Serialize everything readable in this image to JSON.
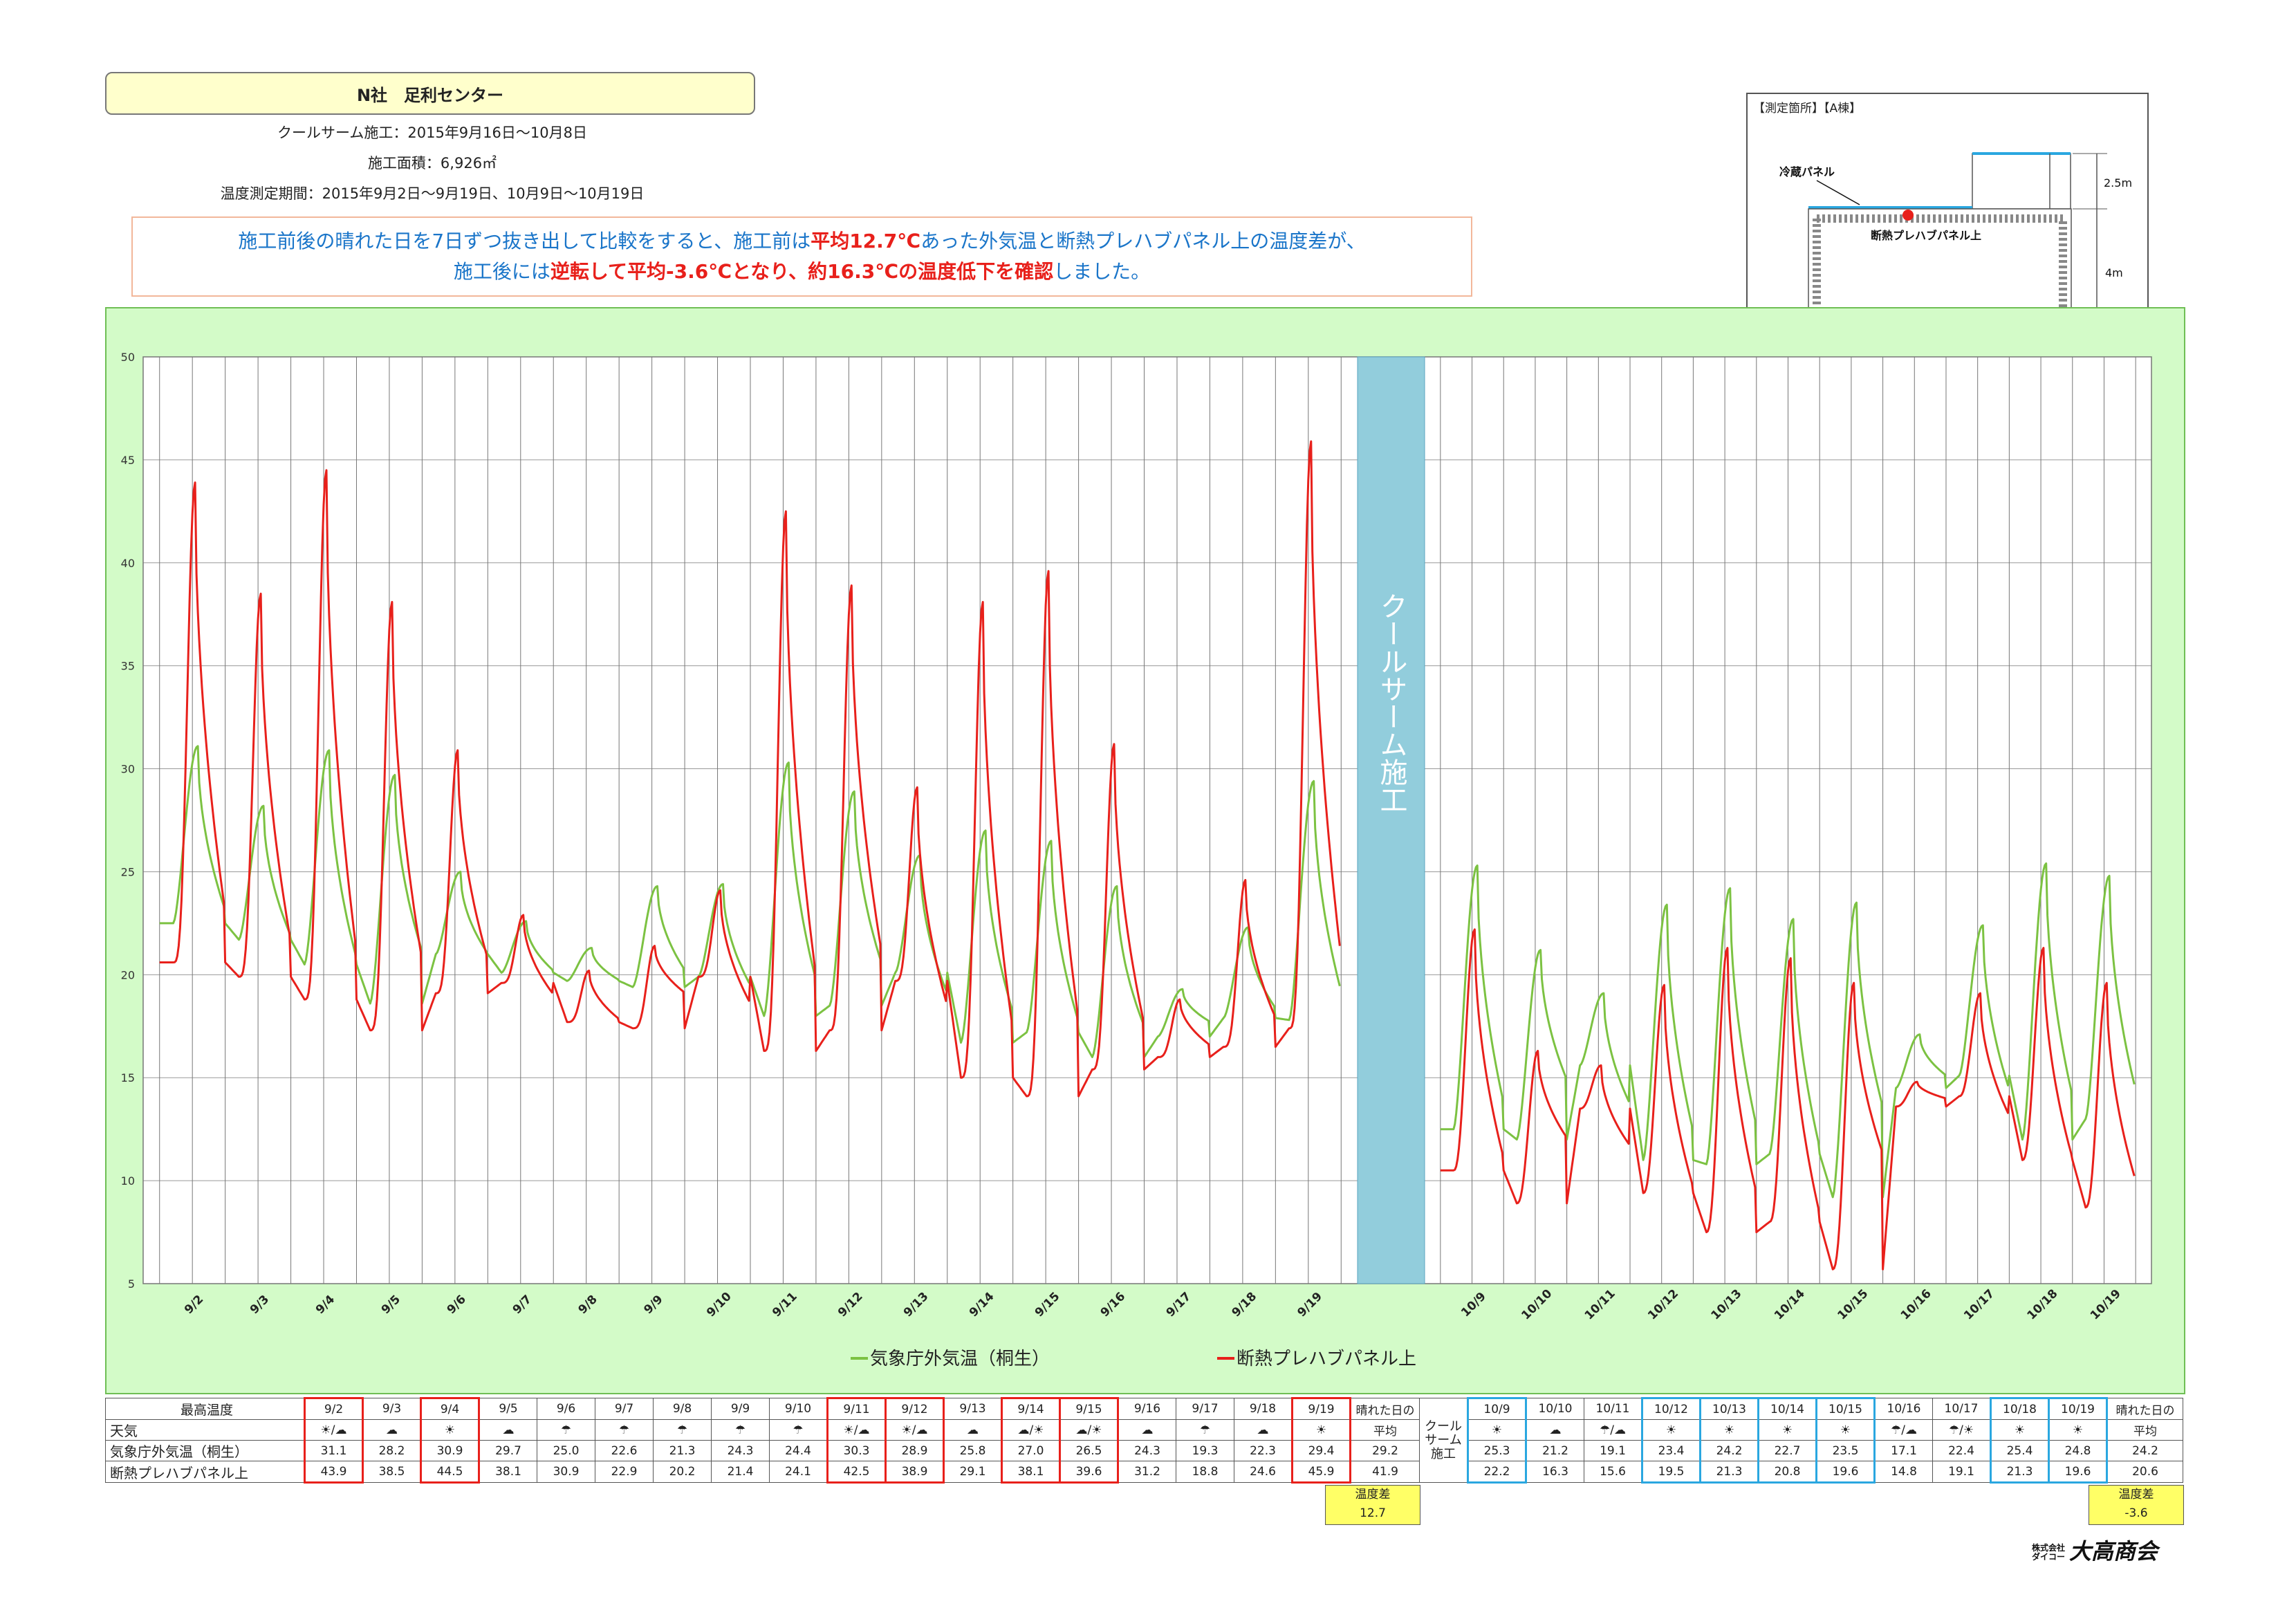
{
  "header": {
    "title": "N社　足利センター",
    "line1": "クールサーム施工：2015年9月16日～10月8日",
    "line2": "施工面積：6,926㎡",
    "line3": "温度測定期間：2015年9月2日～9月19日、10月9日～10月19日"
  },
  "message": {
    "l1_a": "施工前後の晴れた日を7日ずつ抜き出して比較をすると、施工前は",
    "l1_b": "平均12.7℃",
    "l1_c": "あった外気温と断熱プレハブパネル上の温度差が、",
    "l2_a": "施工後には",
    "l2_b": "逆転して平均-3.6℃となり、約16.3℃の温度低下を確認",
    "l2_c": "しました。"
  },
  "diagram": {
    "title": "【測定箇所】【A棟】",
    "label_panel": "冷蔵パネル",
    "label_prefab": "断熱プレハブパネル上",
    "dim_top": "2.5m",
    "dim_bottom": "4m"
  },
  "colors": {
    "green": "#7cc242",
    "red": "#e8201b",
    "band": "#92cddc",
    "border_red": "#e8201b",
    "border_blue": "#2aa7e0"
  },
  "chart_data": {
    "type": "line",
    "ylim": [
      5,
      50
    ],
    "yticks": [
      5,
      10,
      15,
      20,
      25,
      30,
      35,
      40,
      45,
      50
    ],
    "band_label": "クールサーム施工",
    "legend": [
      "気象庁外気温（桐生）",
      "断熱プレハブパネル上"
    ],
    "categories_before": [
      "9/2",
      "9/3",
      "9/4",
      "9/5",
      "9/6",
      "9/7",
      "9/8",
      "9/9",
      "9/10",
      "9/11",
      "9/12",
      "9/13",
      "9/14",
      "9/15",
      "9/16",
      "9/17",
      "9/18",
      "9/19"
    ],
    "categories_after": [
      "10/9",
      "10/10",
      "10/11",
      "10/12",
      "10/13",
      "10/14",
      "10/15",
      "10/16",
      "10/17",
      "10/18",
      "10/19"
    ],
    "series": [
      {
        "name": "気象庁外気温（桐生）",
        "daily_max_before": [
          31.1,
          28.2,
          30.9,
          29.7,
          25.0,
          22.6,
          21.3,
          24.3,
          24.4,
          30.3,
          28.9,
          25.8,
          27.0,
          26.5,
          24.3,
          19.3,
          22.3,
          29.4
        ],
        "daily_max_after": [
          25.3,
          21.2,
          19.1,
          23.4,
          24.2,
          22.7,
          23.5,
          17.1,
          22.4,
          25.4,
          24.8
        ]
      },
      {
        "name": "断熱プレハブパネル上",
        "daily_max_before": [
          43.9,
          38.5,
          44.5,
          38.1,
          30.9,
          22.9,
          20.2,
          21.4,
          24.1,
          42.5,
          38.9,
          29.1,
          38.1,
          39.6,
          31.2,
          18.8,
          24.6,
          45.9
        ],
        "daily_max_after": [
          22.2,
          16.3,
          15.6,
          19.5,
          21.3,
          20.8,
          19.6,
          14.8,
          19.1,
          21.3,
          19.6
        ]
      }
    ],
    "daily_min_before": {
      "green": [
        22.5,
        21.7,
        20.5,
        18.6,
        21.0,
        20.1,
        19.7,
        19.4,
        19.9,
        18.0,
        18.5,
        20.1,
        16.7,
        17.2,
        16.0,
        17.0,
        17.9,
        17.8
      ],
      "red": [
        20.6,
        19.9,
        18.8,
        17.3,
        19.1,
        19.6,
        17.7,
        17.4,
        19.9,
        16.3,
        17.3,
        19.7,
        15.0,
        14.1,
        15.4,
        16.0,
        16.5,
        17.4
      ]
    },
    "daily_min_after": {
      "green": [
        12.5,
        12.0,
        15.6,
        11.0,
        10.8,
        11.3,
        9.2,
        14.5,
        15.1,
        12.0,
        13.0
      ],
      "red": [
        10.5,
        8.9,
        13.5,
        9.4,
        7.5,
        8.0,
        5.7,
        13.6,
        14.1,
        11.0,
        8.7
      ]
    }
  },
  "table": {
    "label_max": "最高温度",
    "label_weather": "天気",
    "label_green": "気象庁外気温（桐生）",
    "label_red": "断熱プレハブパネル上",
    "avg_head1": "晴れた日の",
    "avg_head2": "平均",
    "avg_green_before": "29.2",
    "avg_red_before": "41.9",
    "avg_green_after": "24.2",
    "avg_red_after": "20.6",
    "gap_label": "クールサーム施工",
    "diff_label": "温度差",
    "diff_before": "12.7",
    "diff_after": "-3.6",
    "before": {
      "dates": [
        "9/2",
        "9/3",
        "9/4",
        "9/5",
        "9/6",
        "9/7",
        "9/8",
        "9/9",
        "9/10",
        "9/11",
        "9/12",
        "9/13",
        "9/14",
        "9/15",
        "9/16",
        "9/17",
        "9/18",
        "9/19"
      ],
      "weather": [
        "☀/☁",
        "☁",
        "☀",
        "☁",
        "☂",
        "☂",
        "☂",
        "☂",
        "☂",
        "☀/☁",
        "☀/☁",
        "☁",
        "☁/☀",
        "☁/☀",
        "☁",
        "☂",
        "☁",
        "☀"
      ],
      "green": [
        "31.1",
        "28.2",
        "30.9",
        "29.7",
        "25.0",
        "22.6",
        "21.3",
        "24.3",
        "24.4",
        "30.3",
        "28.9",
        "25.8",
        "27.0",
        "26.5",
        "24.3",
        "19.3",
        "22.3",
        "29.4"
      ],
      "red": [
        "43.9",
        "38.5",
        "44.5",
        "38.1",
        "30.9",
        "22.9",
        "20.2",
        "21.4",
        "24.1",
        "42.5",
        "38.9",
        "29.1",
        "38.1",
        "39.6",
        "31.2",
        "18.8",
        "24.6",
        "45.9"
      ]
    },
    "after": {
      "dates": [
        "10/9",
        "10/10",
        "10/11",
        "10/12",
        "10/13",
        "10/14",
        "10/15",
        "10/16",
        "10/17",
        "10/18",
        "10/19"
      ],
      "weather": [
        "☀",
        "☁",
        "☂/☁",
        "☀",
        "☀",
        "☀",
        "☀",
        "☂/☁",
        "☂/☀",
        "☀",
        "☀"
      ],
      "green": [
        "25.3",
        "21.2",
        "19.1",
        "23.4",
        "24.2",
        "22.7",
        "23.5",
        "17.1",
        "22.4",
        "25.4",
        "24.8"
      ],
      "red": [
        "22.2",
        "16.3",
        "15.6",
        "19.5",
        "21.3",
        "20.8",
        "19.6",
        "14.8",
        "19.1",
        "21.3",
        "19.6"
      ]
    }
  },
  "logo": {
    "small1": "株式会社",
    "small2": "ダイコー",
    "name": "大高商会"
  }
}
